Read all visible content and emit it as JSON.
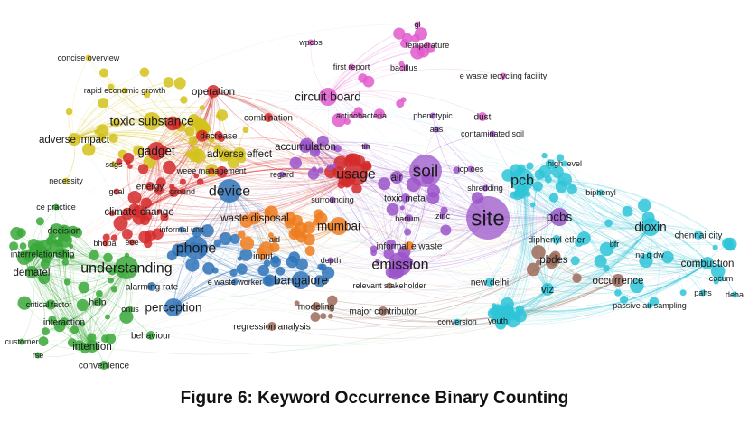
{
  "caption": "Figure 6: Keyword Occurrence Binary Counting",
  "clusters": {
    "yellow": "#d4c21a",
    "red": "#d42a2a",
    "green": "#3aa83a",
    "blue": "#2f74b8",
    "orange": "#ef7d1f",
    "purple": "#9b54c9",
    "pink": "#e05acd",
    "cyan": "#2ec4d8",
    "brown": "#9c6b5a"
  },
  "keywords": [
    {
      "label": "concise overview",
      "cluster": "yellow",
      "weight": 1
    },
    {
      "label": "rapid economic growth",
      "cluster": "yellow",
      "weight": 1
    },
    {
      "label": "operation",
      "cluster": "red",
      "weight": 3
    },
    {
      "label": "toxic substance",
      "cluster": "yellow",
      "weight": 4
    },
    {
      "label": "adverse impact",
      "cluster": "yellow",
      "weight": 3
    },
    {
      "label": "gadget",
      "cluster": "red",
      "weight": 4
    },
    {
      "label": "decrease",
      "cluster": "red",
      "weight": 2
    },
    {
      "label": "adverse effect",
      "cluster": "yellow",
      "weight": 3
    },
    {
      "label": "combination",
      "cluster": "red",
      "weight": 2
    },
    {
      "label": "circuit board",
      "cluster": "pink",
      "weight": 4
    },
    {
      "label": "wpcbs",
      "cluster": "pink",
      "weight": 1
    },
    {
      "label": "temperature",
      "cluster": "pink",
      "weight": 1
    },
    {
      "label": "gl",
      "cluster": "pink",
      "weight": 1
    },
    {
      "label": "first report",
      "cluster": "pink",
      "weight": 1
    },
    {
      "label": "bacillus",
      "cluster": "pink",
      "weight": 1
    },
    {
      "label": "e waste recycling facility",
      "cluster": "pink",
      "weight": 1
    },
    {
      "label": "actinobacteria",
      "cluster": "pink",
      "weight": 1
    },
    {
      "label": "phenotypic",
      "cluster": "purple",
      "weight": 1
    },
    {
      "label": "dust",
      "cluster": "pink",
      "weight": 2
    },
    {
      "label": "aas",
      "cluster": "purple",
      "weight": 1
    },
    {
      "label": "contaminated soil",
      "cluster": "purple",
      "weight": 1
    },
    {
      "label": "accumulation",
      "cluster": "purple",
      "weight": 3
    },
    {
      "label": "tin",
      "cluster": "purple",
      "weight": 1
    },
    {
      "label": "necessity",
      "cluster": "yellow",
      "weight": 1
    },
    {
      "label": "sdgs",
      "cluster": "yellow",
      "weight": 1
    },
    {
      "label": "weee management",
      "cluster": "red",
      "weight": 1
    },
    {
      "label": "regard",
      "cluster": "purple",
      "weight": 1
    },
    {
      "label": "usage",
      "cluster": "red",
      "weight": 5
    },
    {
      "label": "air",
      "cluster": "purple",
      "weight": 3
    },
    {
      "label": "soil",
      "cluster": "purple",
      "weight": 6
    },
    {
      "label": "icp oes",
      "cluster": "purple",
      "weight": 1
    },
    {
      "label": "high level",
      "cluster": "cyan",
      "weight": 1
    },
    {
      "label": "pcb",
      "cluster": "cyan",
      "weight": 5
    },
    {
      "label": "energy",
      "cluster": "red",
      "weight": 2
    },
    {
      "label": "goal",
      "cluster": "red",
      "weight": 1
    },
    {
      "label": "ground",
      "cluster": "red",
      "weight": 1
    },
    {
      "label": "device",
      "cluster": "blue",
      "weight": 5
    },
    {
      "label": "surrounding",
      "cluster": "purple",
      "weight": 1
    },
    {
      "label": "toxic metal",
      "cluster": "purple",
      "weight": 2
    },
    {
      "label": "shredding",
      "cluster": "purple",
      "weight": 1
    },
    {
      "label": "biphenyl",
      "cluster": "cyan",
      "weight": 1
    },
    {
      "label": "ce practice",
      "cluster": "green",
      "weight": 1
    },
    {
      "label": "climate change",
      "cluster": "red",
      "weight": 3
    },
    {
      "label": "waste disposal",
      "cluster": "orange",
      "weight": 3
    },
    {
      "label": "barium",
      "cluster": "purple",
      "weight": 1
    },
    {
      "label": "zinc",
      "cluster": "purple",
      "weight": 1
    },
    {
      "label": "site",
      "cluster": "purple",
      "weight": 7
    },
    {
      "label": "pcbs",
      "cluster": "purple",
      "weight": 4
    },
    {
      "label": "dioxin",
      "cluster": "cyan",
      "weight": 4
    },
    {
      "label": "chennai city",
      "cluster": "cyan",
      "weight": 2
    },
    {
      "label": "decision",
      "cluster": "green",
      "weight": 2
    },
    {
      "label": "informal unit",
      "cluster": "blue",
      "weight": 1
    },
    {
      "label": "mumbai",
      "cluster": "orange",
      "weight": 4
    },
    {
      "label": "bhopal",
      "cluster": "red",
      "weight": 1
    },
    {
      "label": "eee",
      "cluster": "red",
      "weight": 1
    },
    {
      "label": "phone",
      "cluster": "blue",
      "weight": 5
    },
    {
      "label": "aid",
      "cluster": "orange",
      "weight": 1
    },
    {
      "label": "informal e waste",
      "cluster": "orange",
      "weight": 2
    },
    {
      "label": "diphenyl ether",
      "cluster": "cyan",
      "weight": 2
    },
    {
      "label": "bfr",
      "cluster": "cyan",
      "weight": 1
    },
    {
      "label": "ng g dw",
      "cluster": "cyan",
      "weight": 1
    },
    {
      "label": "interrelationship",
      "cluster": "green",
      "weight": 2
    },
    {
      "label": "input",
      "cluster": "orange",
      "weight": 2
    },
    {
      "label": "depth",
      "cluster": "purple",
      "weight": 1
    },
    {
      "label": "emission",
      "cluster": "purple",
      "weight": 5
    },
    {
      "label": "pbdes",
      "cluster": "brown",
      "weight": 3
    },
    {
      "label": "combustion",
      "cluster": "cyan",
      "weight": 3
    },
    {
      "label": "understanding",
      "cluster": "green",
      "weight": 5
    },
    {
      "label": "dematel",
      "cluster": "green",
      "weight": 3
    },
    {
      "label": "bangalore",
      "cluster": "blue",
      "weight": 4
    },
    {
      "label": "e waste worker",
      "cluster": "blue",
      "weight": 1
    },
    {
      "label": "alarming rate",
      "cluster": "blue",
      "weight": 2
    },
    {
      "label": "relevant stakeholder",
      "cluster": "brown",
      "weight": 1
    },
    {
      "label": "new delhi",
      "cluster": "cyan",
      "weight": 2
    },
    {
      "label": "viz",
      "cluster": "cyan",
      "weight": 3
    },
    {
      "label": "occurrence",
      "cluster": "brown",
      "weight": 3
    },
    {
      "label": "cocum",
      "cluster": "cyan",
      "weight": 1
    },
    {
      "label": "pahs",
      "cluster": "cyan",
      "weight": 1
    },
    {
      "label": "deha",
      "cluster": "cyan",
      "weight": 1
    },
    {
      "label": "critical factor",
      "cluster": "green",
      "weight": 1
    },
    {
      "label": "help",
      "cluster": "green",
      "weight": 2
    },
    {
      "label": "onus",
      "cluster": "green",
      "weight": 1
    },
    {
      "label": "perception",
      "cluster": "blue",
      "weight": 4
    },
    {
      "label": "modeling",
      "cluster": "brown",
      "weight": 2
    },
    {
      "label": "major contributor",
      "cluster": "brown",
      "weight": 2
    },
    {
      "label": "passive air sampling",
      "cluster": "cyan",
      "weight": 1
    },
    {
      "label": "interaction",
      "cluster": "green",
      "weight": 2
    },
    {
      "label": "regression analysis",
      "cluster": "brown",
      "weight": 2
    },
    {
      "label": "conversion",
      "cluster": "cyan",
      "weight": 1
    },
    {
      "label": "youth",
      "cluster": "cyan",
      "weight": 1
    },
    {
      "label": "behaviour",
      "cluster": "green",
      "weight": 2
    },
    {
      "label": "customer",
      "cluster": "green",
      "weight": 1
    },
    {
      "label": "intention",
      "cluster": "green",
      "weight": 3
    },
    {
      "label": "rse",
      "cluster": "green",
      "weight": 1
    },
    {
      "label": "convenience",
      "cluster": "green",
      "weight": 2
    }
  ]
}
